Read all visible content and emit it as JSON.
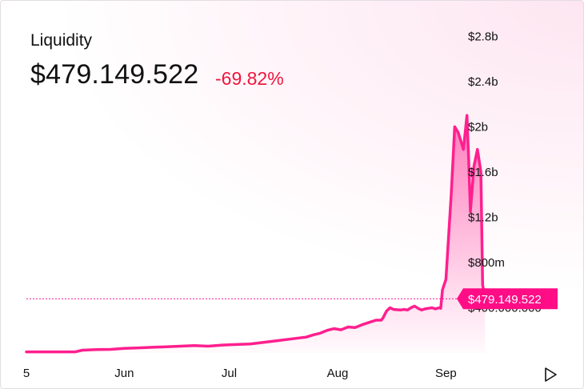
{
  "header": {
    "label": "Liquidity",
    "value": "$479.149.522",
    "change": "-69.82%"
  },
  "colors": {
    "line": "#ff1f8e",
    "negative": "#f0153c",
    "tag_bg": "#ff0d86"
  },
  "controls": {
    "play_icon": "play-triangle-icon"
  },
  "chart_data": {
    "type": "area",
    "title": "",
    "xlabel": "",
    "ylabel": "",
    "x_ticks": [
      {
        "label": "5",
        "day": 0
      },
      {
        "label": "Jun",
        "day": 28
      },
      {
        "label": "Jul",
        "day": 58
      },
      {
        "label": "Aug",
        "day": 89
      },
      {
        "label": "Sep",
        "day": 120
      }
    ],
    "xlim": [
      0,
      135
    ],
    "y_ticks": [
      {
        "label": "$400.000.000",
        "value": 400000000
      },
      {
        "label": "$800m",
        "value": 800000000
      },
      {
        "label": "$1.2b",
        "value": 1200000000
      },
      {
        "label": "$1.6b",
        "value": 1600000000
      },
      {
        "label": "$2b",
        "value": 2000000000
      },
      {
        "label": "$2.4b",
        "value": 2400000000
      },
      {
        "label": "$2.8b",
        "value": 2800000000
      }
    ],
    "ylim": [
      0,
      2900000000
    ],
    "grid": false,
    "current": {
      "label": "$479.149.522",
      "value": 479149522
    },
    "series": [
      {
        "points": [
          [
            0,
            10000000
          ],
          [
            14,
            10000000
          ],
          [
            16,
            25000000
          ],
          [
            20,
            30000000
          ],
          [
            24,
            32000000
          ],
          [
            28,
            40000000
          ],
          [
            32,
            45000000
          ],
          [
            36,
            50000000
          ],
          [
            40,
            55000000
          ],
          [
            44,
            60000000
          ],
          [
            48,
            65000000
          ],
          [
            52,
            60000000
          ],
          [
            56,
            70000000
          ],
          [
            60,
            75000000
          ],
          [
            64,
            80000000
          ],
          [
            68,
            95000000
          ],
          [
            72,
            110000000
          ],
          [
            76,
            125000000
          ],
          [
            80,
            140000000
          ],
          [
            82,
            160000000
          ],
          [
            84,
            175000000
          ],
          [
            86,
            200000000
          ],
          [
            88,
            215000000
          ],
          [
            90,
            205000000
          ],
          [
            92,
            230000000
          ],
          [
            94,
            225000000
          ],
          [
            96,
            250000000
          ],
          [
            98,
            270000000
          ],
          [
            100,
            290000000
          ],
          [
            101.5,
            290000000
          ],
          [
            102,
            310000000
          ],
          [
            103,
            370000000
          ],
          [
            104,
            400000000
          ],
          [
            105,
            385000000
          ],
          [
            107,
            380000000
          ],
          [
            108,
            385000000
          ],
          [
            109,
            380000000
          ],
          [
            110,
            400000000
          ],
          [
            111,
            415000000
          ],
          [
            112,
            395000000
          ],
          [
            113,
            380000000
          ],
          [
            114,
            390000000
          ],
          [
            115,
            395000000
          ],
          [
            116,
            400000000
          ],
          [
            117,
            390000000
          ],
          [
            118,
            400000000
          ],
          [
            118.5,
            395000000
          ],
          [
            119,
            560000000
          ],
          [
            120,
            650000000
          ],
          [
            121.5,
            1400000000
          ],
          [
            122.5,
            2000000000
          ],
          [
            123.5,
            1950000000
          ],
          [
            124,
            1900000000
          ],
          [
            125,
            1800000000
          ],
          [
            126,
            2100000000
          ],
          [
            126.5,
            1700000000
          ],
          [
            127,
            1250000000
          ],
          [
            128,
            1650000000
          ],
          [
            129,
            1800000000
          ],
          [
            130,
            1600000000
          ],
          [
            130.5,
            600000000
          ],
          [
            131.2,
            479149522
          ]
        ]
      }
    ]
  }
}
